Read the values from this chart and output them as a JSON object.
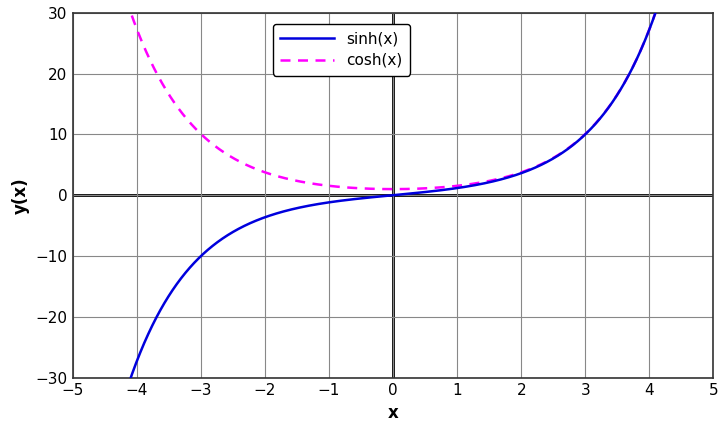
{
  "xlabel": "x",
  "ylabel": "y(x)",
  "xlim": [
    -5,
    5
  ],
  "ylim": [
    -30,
    30
  ],
  "xticks": [
    -5,
    -4,
    -3,
    -2,
    -1,
    0,
    1,
    2,
    3,
    4,
    5
  ],
  "yticks": [
    -30,
    -20,
    -10,
    0,
    10,
    20,
    30
  ],
  "x_start": -4.2,
  "x_end": 4.2,
  "sinh_color": "#0000DD",
  "cosh_color": "#FF00FF",
  "sinh_linewidth": 1.8,
  "cosh_linewidth": 1.8,
  "sinh_label": "sinh(x)",
  "cosh_label": "cosh(x)",
  "background_color": "#ffffff",
  "grid_color": "#888888",
  "spine_color": "#333333",
  "zero_line_color": "#000000",
  "tick_fontsize": 11,
  "label_fontsize": 12
}
